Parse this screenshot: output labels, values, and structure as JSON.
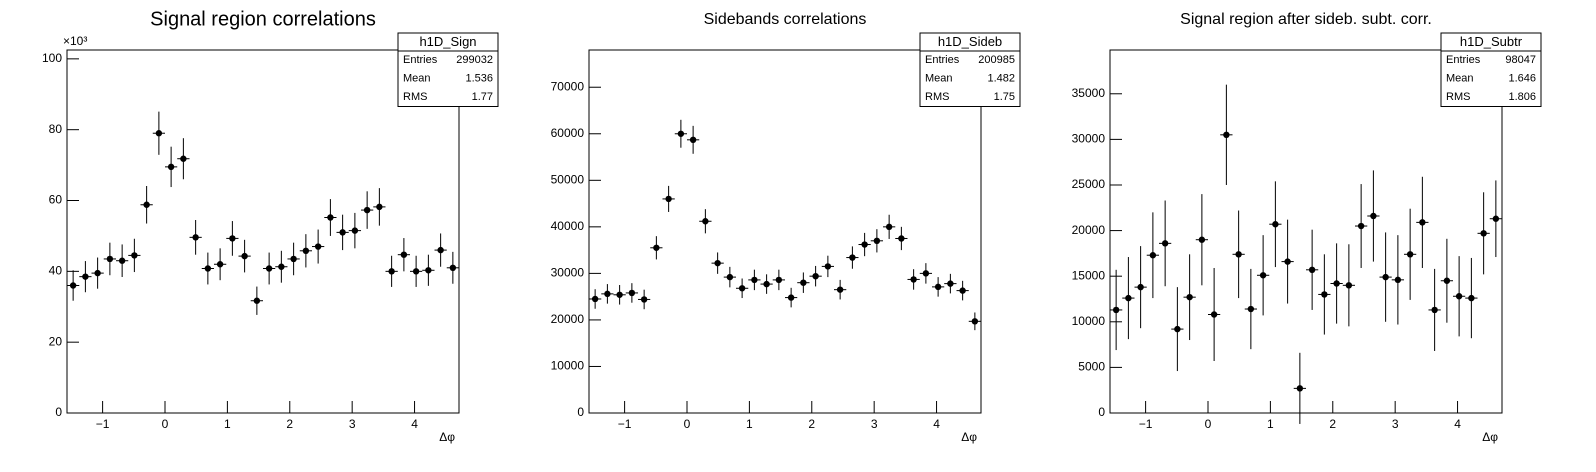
{
  "chart_data": [
    {
      "type": "histogram",
      "title": "Signal region correlations",
      "xlabel": "Δφ",
      "y_multiplier": "×10³",
      "bins": [
        -1.571,
        -1.374,
        -1.178,
        -0.982,
        -0.785,
        -0.589,
        -0.393,
        -0.196,
        0,
        0.196,
        0.393,
        0.589,
        0.785,
        0.982,
        1.178,
        1.374,
        1.571,
        1.767,
        1.963,
        2.16,
        2.356,
        2.553,
        2.749,
        2.945,
        3.142,
        3.338,
        3.534,
        3.731,
        3.927,
        4.123,
        4.32,
        4.516,
        4.712
      ],
      "values": [
        36,
        38.5,
        39.5,
        43.5,
        43,
        44.5,
        58.8,
        79,
        69.5,
        71.8,
        49.6,
        40.8,
        42,
        49.3,
        44.3,
        31.7,
        40.8,
        41.3,
        43.5,
        45.8,
        47,
        55.2,
        51,
        51.5,
        57.3,
        58.2,
        40,
        44.7,
        40,
        40.3,
        46,
        41
      ],
      "errors": [
        4.3,
        4.4,
        4.4,
        4.6,
        4.6,
        4.7,
        5.3,
        6.1,
        5.7,
        5.8,
        4.9,
        4.5,
        4.5,
        4.9,
        4.6,
        4.0,
        4.5,
        4.5,
        4.6,
        4.7,
        4.8,
        5.2,
        5.0,
        5.0,
        5.3,
        5.3,
        4.4,
        4.7,
        4.4,
        4.4,
        4.7,
        4.5
      ],
      "color": "#000000",
      "xlim": [
        -1.5708,
        4.7124
      ],
      "xticks": [
        {
          "value": -1,
          "label": "−1"
        },
        0,
        1,
        2,
        3,
        4
      ],
      "ylim": [
        0,
        102.5
      ],
      "yticks": [
        0,
        20,
        40,
        60,
        80,
        100
      ],
      "stats": {
        "name": "h1D_Sign",
        "rows": [
          {
            "label": "Entries",
            "value": 299032
          },
          {
            "label": "Mean",
            "value": 1.536
          },
          {
            "label": "RMS",
            "value": 1.77
          }
        ]
      }
    },
    {
      "type": "histogram",
      "title": "Sidebands correlations",
      "xlabel": "Δφ",
      "bins": [
        -1.571,
        -1.374,
        -1.178,
        -0.982,
        -0.785,
        -0.589,
        -0.393,
        -0.196,
        0,
        0.196,
        0.393,
        0.589,
        0.785,
        0.982,
        1.178,
        1.374,
        1.571,
        1.767,
        1.963,
        2.16,
        2.356,
        2.553,
        2.749,
        2.945,
        3.142,
        3.338,
        3.534,
        3.731,
        3.927,
        4.123,
        4.32,
        4.516,
        4.712
      ],
      "values": [
        24500,
        25600,
        25400,
        25800,
        24400,
        35500,
        46000,
        60000,
        58700,
        41200,
        32200,
        29200,
        26800,
        28600,
        27700,
        28600,
        24800,
        28000,
        29400,
        31500,
        26500,
        33400,
        36200,
        37000,
        40000,
        37500,
        28700,
        30000,
        27100,
        27800,
        26300,
        19700
      ],
      "errors": [
        2100,
        2100,
        2100,
        2100,
        2100,
        2500,
        2800,
        3000,
        3000,
        2600,
        2300,
        2200,
        2100,
        2200,
        2100,
        2200,
        2100,
        2200,
        2200,
        2300,
        2100,
        2400,
        2500,
        2500,
        2600,
        2500,
        2200,
        2200,
        2100,
        2100,
        2100,
        1900
      ],
      "color": "#000000",
      "xlim": [
        -1.5708,
        4.7124
      ],
      "xticks": [
        {
          "value": -1,
          "label": "−1"
        },
        0,
        1,
        2,
        3,
        4
      ],
      "ylim": [
        0,
        78000
      ],
      "yticks": [
        0,
        10000,
        20000,
        30000,
        40000,
        50000,
        60000,
        70000
      ],
      "stats": {
        "name": "h1D_Sideb",
        "rows": [
          {
            "label": "Entries",
            "value": 200985
          },
          {
            "label": "Mean",
            "value": 1.482
          },
          {
            "label": "RMS",
            "value": 1.75
          }
        ]
      }
    },
    {
      "type": "histogram",
      "title": "Signal region after sideb. subt. corr.",
      "xlabel": "Δφ",
      "bins": [
        -1.571,
        -1.374,
        -1.178,
        -0.982,
        -0.785,
        -0.589,
        -0.393,
        -0.196,
        0,
        0.196,
        0.393,
        0.589,
        0.785,
        0.982,
        1.178,
        1.374,
        1.571,
        1.767,
        1.963,
        2.16,
        2.356,
        2.553,
        2.749,
        2.945,
        3.142,
        3.338,
        3.534,
        3.731,
        3.927,
        4.123,
        4.32,
        4.516,
        4.712
      ],
      "values": [
        11300,
        12600,
        13800,
        17300,
        18600,
        9200,
        12700,
        19000,
        10800,
        30500,
        17400,
        11400,
        15100,
        20700,
        16600,
        2700,
        15700,
        13000,
        14200,
        14000,
        20500,
        21600,
        14900,
        14600,
        17400,
        20900,
        11300,
        14500,
        12800,
        12600,
        19700,
        21300
      ],
      "errors": [
        4400,
        4500,
        4500,
        4700,
        4700,
        4600,
        4700,
        5000,
        5100,
        5500,
        4800,
        4400,
        4400,
        4700,
        4600,
        3900,
        4400,
        4400,
        4400,
        4500,
        4600,
        5000,
        4900,
        4900,
        5000,
        5000,
        4500,
        4600,
        4400,
        4400,
        4500,
        4200
      ],
      "color": "#000000",
      "xlim": [
        -1.5708,
        4.7124
      ],
      "xticks": [
        {
          "value": -1,
          "label": "−1"
        },
        0,
        1,
        2,
        3,
        4
      ],
      "ylim": [
        0,
        39800
      ],
      "yticks": [
        0,
        5000,
        10000,
        15000,
        20000,
        25000,
        30000,
        35000
      ],
      "stats": {
        "name": "h1D_Subtr",
        "rows": [
          {
            "label": "Entries",
            "value": 98047
          },
          {
            "label": "Mean",
            "value": 1.646
          },
          {
            "label": "RMS",
            "value": 1.806
          }
        ]
      }
    }
  ]
}
